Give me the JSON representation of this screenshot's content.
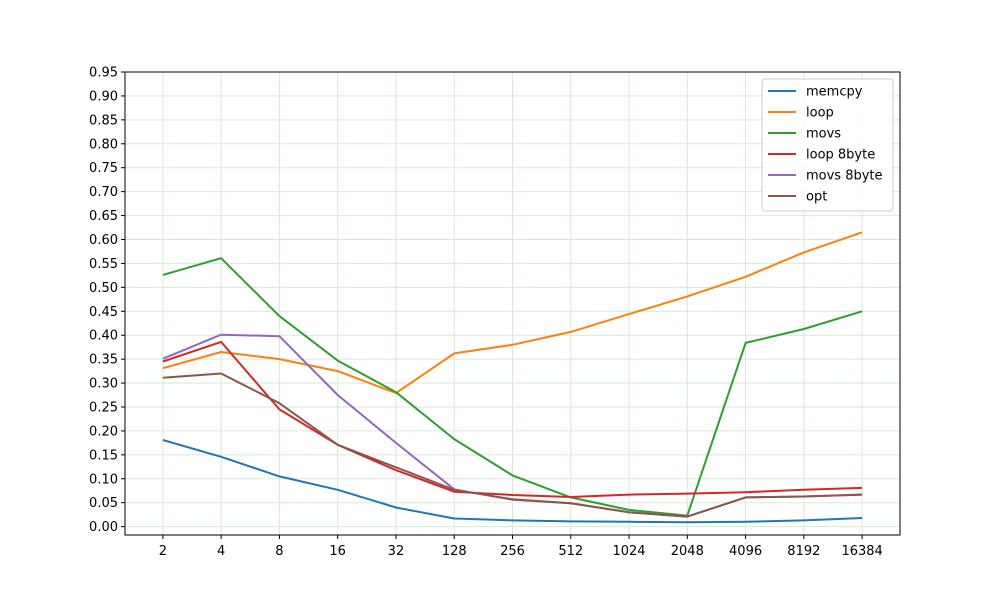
{
  "chart_data": {
    "type": "line",
    "title": "",
    "xlabel": "",
    "ylabel": "",
    "categories": [
      "2",
      "4",
      "8",
      "16",
      "32",
      "128",
      "256",
      "512",
      "1024",
      "2048",
      "4096",
      "8192",
      "16384"
    ],
    "ylim": [
      -0.0175,
      0.95
    ],
    "yticks": [
      "0.00",
      "0.05",
      "0.10",
      "0.15",
      "0.20",
      "0.25",
      "0.30",
      "0.35",
      "0.40",
      "0.45",
      "0.50",
      "0.55",
      "0.60",
      "0.65",
      "0.70",
      "0.75",
      "0.80",
      "0.85",
      "0.90",
      "0.95"
    ],
    "grid": true,
    "grid_color": "#d5ead5",
    "legend_position": "top-right",
    "series": [
      {
        "name": "memcpy",
        "color": "#1f77b4",
        "values": [
          0.181,
          0.146,
          0.105,
          0.077,
          0.04,
          0.017,
          0.013,
          0.011,
          0.01,
          0.009,
          0.01,
          0.013,
          0.018
        ]
      },
      {
        "name": "loop",
        "color": "#ff7f0e",
        "values": [
          0.331,
          0.365,
          0.35,
          0.325,
          0.279,
          0.362,
          0.38,
          0.407,
          0.444,
          0.481,
          0.522,
          0.573,
          0.615
        ]
      },
      {
        "name": "movs",
        "color": "#2ca02c",
        "values": [
          0.526,
          0.561,
          0.44,
          0.347,
          0.281,
          0.183,
          0.107,
          0.061,
          0.035,
          0.023,
          0.384,
          0.413,
          0.45
        ]
      },
      {
        "name": "loop 8byte",
        "color": "#d62728",
        "values": [
          0.345,
          0.386,
          0.245,
          0.171,
          0.118,
          0.073,
          0.066,
          0.062,
          0.067,
          0.069,
          0.072,
          0.077,
          0.081
        ]
      },
      {
        "name": "movs 8byte",
        "color": "#9467bd",
        "values": [
          0.351,
          0.401,
          0.398,
          0.275,
          0.175,
          0.078,
          0.056,
          0.049,
          0.03,
          0.021,
          0.061,
          0.063,
          0.067
        ]
      },
      {
        "name": "opt",
        "color": "#8c564b",
        "values": [
          0.311,
          0.32,
          0.258,
          0.171,
          0.124,
          0.077,
          0.057,
          0.049,
          0.03,
          0.021,
          0.061,
          0.063,
          0.067
        ]
      }
    ]
  }
}
